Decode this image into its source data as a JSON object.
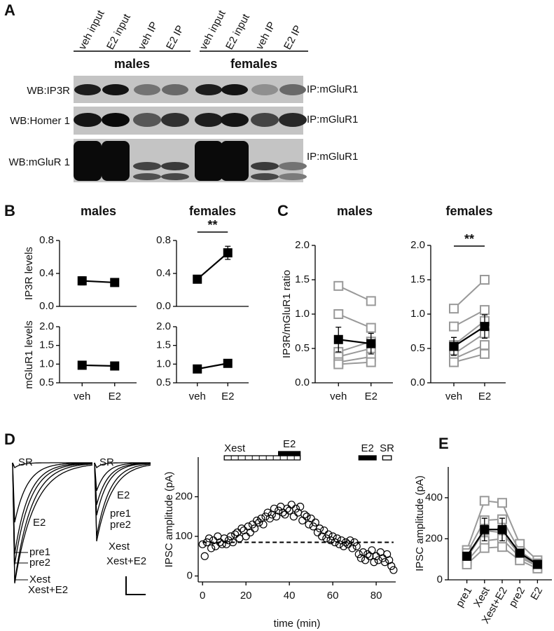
{
  "panel_labels": [
    "A",
    "B",
    "C",
    "D",
    "E"
  ],
  "blot": {
    "lanes": [
      "veh input",
      "E2 input",
      "veh IP",
      "E2 IP",
      "veh input",
      "E2 input",
      "veh IP",
      "E2 IP"
    ],
    "groups": [
      "males",
      "females"
    ],
    "rows": [
      {
        "wb": "WB:IP3R",
        "ip": "IP:mGluR1"
      },
      {
        "wb": "WB:Homer 1",
        "ip": "IP:mGluR1"
      },
      {
        "wb": "WB:mGluR 1",
        "ip": "IP:mGluR1"
      }
    ]
  },
  "traces": {
    "left": [
      "SR",
      "E2",
      "pre1",
      "pre2",
      "Xest",
      "Xest+E2"
    ],
    "right": [
      "SR",
      "E2",
      "pre1",
      "pre2",
      "Xest",
      "Xest+E2"
    ]
  },
  "chart_data": [
    {
      "type": "line",
      "title": "males",
      "ylabel": "IP3R levels",
      "categories": [
        null,
        null
      ],
      "ylim": [
        0,
        0.8
      ],
      "yticks": [
        {
          "value": 0,
          "label": "0.0"
        },
        0.4,
        0.8
      ],
      "series": [
        {
          "color": "#000000",
          "marker": "square",
          "values": [
            0.31,
            0.29
          ],
          "errors": [
            0.05,
            0.03
          ]
        }
      ]
    },
    {
      "type": "line",
      "title": "females",
      "categories": [
        null,
        null
      ],
      "annotation": "**",
      "ylim": [
        0,
        0.8
      ],
      "yticks": [
        {
          "value": 0,
          "label": "0.0"
        },
        0.4,
        0.8
      ],
      "series": [
        {
          "color": "#000000",
          "marker": "square",
          "values": [
            0.33,
            0.65
          ],
          "errors": [
            0.03,
            0.08
          ]
        }
      ]
    },
    {
      "type": "line",
      "ylabel": "mGluR1 levels",
      "categories": [
        "veh",
        "E2"
      ],
      "ylim": [
        0.5,
        2.0
      ],
      "yticks": [
        0.5,
        {
          "value": 1,
          "label": "1.0"
        },
        1.5,
        {
          "value": 2,
          "label": "2.0"
        }
      ],
      "series": [
        {
          "color": "#000000",
          "marker": "square",
          "values": [
            0.97,
            0.95
          ],
          "errors": [
            0.1,
            0.1
          ]
        }
      ]
    },
    {
      "type": "line",
      "categories": [
        "veh",
        "E2"
      ],
      "ylim": [
        0.5,
        2.0
      ],
      "yticks": [
        0.5,
        {
          "value": 1,
          "label": "1.0"
        },
        1.5,
        {
          "value": 2,
          "label": "2.0"
        }
      ],
      "series": [
        {
          "color": "#000000",
          "marker": "square",
          "values": [
            0.87,
            1.02
          ],
          "errors": [
            0.07,
            0.05
          ]
        }
      ]
    },
    {
      "type": "line",
      "title": "males",
      "ylabel": "IP3R/mGluR1 ratio",
      "categories": [
        "veh",
        "E2"
      ],
      "ylim": [
        0,
        2.0
      ],
      "yticks": [
        {
          "value": 0,
          "label": "0.0"
        },
        0.5,
        {
          "value": 1,
          "label": "1.0"
        },
        1.5,
        {
          "value": 2,
          "label": "2.0"
        }
      ],
      "series": [
        {
          "color": "#999999",
          "marker": "square-open",
          "values": [
            1.41,
            1.19
          ]
        },
        {
          "color": "#999999",
          "marker": "square-open",
          "values": [
            1.0,
            0.8
          ]
        },
        {
          "color": "#999999",
          "marker": "square-open",
          "values": [
            0.45,
            0.6
          ]
        },
        {
          "color": "#999999",
          "marker": "square-open",
          "values": [
            0.38,
            0.5
          ]
        },
        {
          "color": "#999999",
          "marker": "square-open",
          "values": [
            0.3,
            0.38
          ]
        },
        {
          "color": "#999999",
          "marker": "square-open",
          "values": [
            0.27,
            0.3
          ]
        },
        {
          "color": "#000000",
          "marker": "square",
          "values": [
            0.63,
            0.57
          ],
          "errors": [
            0.18,
            0.15
          ]
        }
      ]
    },
    {
      "type": "line",
      "title": "females",
      "categories": [
        "veh",
        "E2"
      ],
      "annotation": "**",
      "ylim": [
        0,
        2.0
      ],
      "yticks": [
        {
          "value": 0,
          "label": "0.0"
        },
        0.5,
        {
          "value": 1,
          "label": "1.0"
        },
        1.5,
        {
          "value": 2,
          "label": "2.0"
        }
      ],
      "series": [
        {
          "color": "#999999",
          "marker": "square-open",
          "values": [
            1.08,
            1.5
          ]
        },
        {
          "color": "#999999",
          "marker": "square-open",
          "values": [
            0.82,
            1.06
          ]
        },
        {
          "color": "#999999",
          "marker": "square-open",
          "values": [
            0.55,
            0.9
          ]
        },
        {
          "color": "#999999",
          "marker": "square-open",
          "values": [
            0.42,
            0.72
          ]
        },
        {
          "color": "#999999",
          "marker": "square-open",
          "values": [
            0.35,
            0.55
          ]
        },
        {
          "color": "#999999",
          "marker": "square-open",
          "values": [
            0.3,
            0.42
          ]
        },
        {
          "color": "#000000",
          "marker": "square",
          "values": [
            0.53,
            0.82
          ],
          "errors": [
            0.13,
            0.17
          ]
        }
      ]
    },
    {
      "type": "scatter",
      "xlabel": "time (min)",
      "ylabel": "IPSC amplitude (pA)",
      "xlim": [
        -2,
        89
      ],
      "ylim": [
        -15,
        300
      ],
      "xticks": [
        0,
        20,
        40,
        60,
        80
      ],
      "yticks": [
        0,
        100,
        200
      ],
      "x": [
        0,
        1,
        2,
        3,
        4,
        5,
        6,
        7,
        8,
        9,
        10,
        11,
        12,
        13,
        14,
        15,
        16,
        17,
        18,
        19,
        20,
        21,
        22,
        23,
        24,
        25,
        26,
        27,
        28,
        29,
        30,
        31,
        32,
        33,
        34,
        35,
        36,
        37,
        38,
        39,
        40,
        41,
        42,
        43,
        44,
        45,
        46,
        47,
        48,
        49,
        50,
        51,
        52,
        53,
        54,
        55,
        56,
        57,
        58,
        59,
        60,
        61,
        62,
        63,
        64,
        65,
        66,
        67,
        68,
        69,
        70,
        71,
        72,
        73,
        74,
        75,
        76,
        77,
        78,
        79,
        80,
        81,
        82,
        83,
        84,
        85,
        86,
        87,
        88
      ],
      "series": [
        {
          "color": "#000000",
          "marker": "circle-open",
          "values": [
            80,
            50,
            85,
            95,
            70,
            90,
            75,
            100,
            85,
            80,
            95,
            80,
            90,
            100,
            85,
            105,
            110,
            95,
            120,
            115,
            100,
            125,
            110,
            130,
            120,
            140,
            135,
            145,
            130,
            150,
            160,
            145,
            155,
            170,
            150,
            165,
            175,
            160,
            155,
            170,
            165,
            180,
            150,
            170,
            160,
            175,
            140,
            155,
            150,
            130,
            145,
            125,
            135,
            110,
            120,
            100,
            115,
            95,
            105,
            90,
            100,
            85,
            95,
            80,
            90,
            75,
            85,
            80,
            90,
            70,
            85,
            75,
            55,
            45,
            60,
            40,
            55,
            50,
            65,
            35,
            50,
            40,
            60,
            45,
            35,
            55,
            40,
            25,
            15
          ]
        }
      ],
      "reference_line": 85,
      "bars": [
        {
          "label": "Xest",
          "start": 10,
          "end": 45,
          "fill": "none"
        },
        {
          "label": "E2",
          "start": 35,
          "end": 45,
          "fill": "#000000"
        },
        {
          "label": "E2",
          "start": 72,
          "end": 80,
          "fill": "#000000"
        },
        {
          "label": "SR",
          "start": 83,
          "end": 87,
          "fill": "none"
        }
      ]
    },
    {
      "type": "line",
      "ylabel": "IPSC amplitude (pA)",
      "categories": [
        "pre1",
        "Xest",
        "Xest+E2",
        "pre2",
        "E2"
      ],
      "ylim": [
        0,
        550
      ],
      "yticks": [
        0,
        200,
        400
      ],
      "series": [
        {
          "color": "#999999",
          "marker": "square-open",
          "values": [
            145,
            385,
            375,
            175,
            95
          ]
        },
        {
          "color": "#999999",
          "marker": "square-open",
          "values": [
            130,
            290,
            295,
            140,
            80
          ]
        },
        {
          "color": "#999999",
          "marker": "square-open",
          "values": [
            105,
            240,
            230,
            120,
            70
          ]
        },
        {
          "color": "#999999",
          "marker": "square-open",
          "values": [
            90,
            190,
            200,
            110,
            65
          ]
        },
        {
          "color": "#999999",
          "marker": "square-open",
          "values": [
            75,
            155,
            160,
            95,
            55
          ]
        },
        {
          "color": "#000000",
          "marker": "square",
          "values": [
            115,
            245,
            245,
            130,
            75
          ],
          "errors": [
            15,
            55,
            55,
            20,
            10
          ]
        }
      ]
    }
  ]
}
